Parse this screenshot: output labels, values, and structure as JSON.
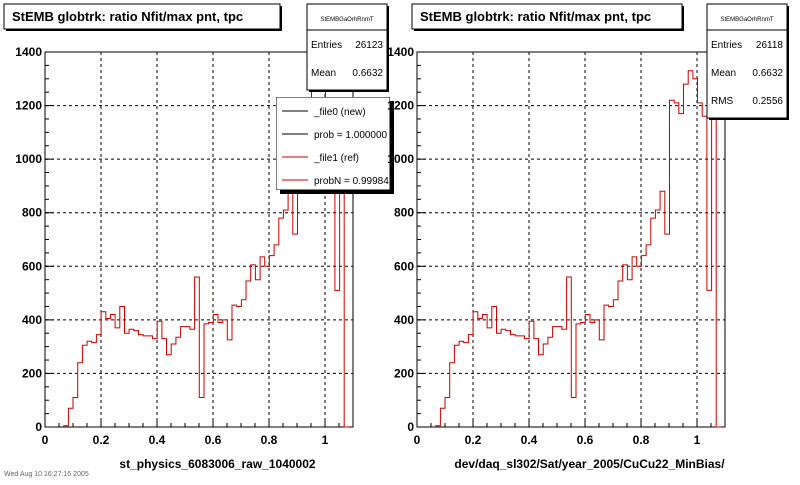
{
  "footer_text": "Wed Aug 10 16:27:16 2005",
  "chart_data": [
    {
      "type": "histogram",
      "title": "StEMB globtrk: ratio Nfit/max pnt, tpc",
      "xlabel": "st_physics_6083006_raw_1040002",
      "ylabel": "",
      "xlim": [
        0,
        1.1
      ],
      "ylim": [
        0,
        1400
      ],
      "x_ticks": [
        "0",
        "0.2",
        "0.4",
        "0.6",
        "0.8",
        "1"
      ],
      "y_ticks": [
        "0",
        "200",
        "400",
        "600",
        "800",
        "1000",
        "1200",
        "1400"
      ],
      "grid": true,
      "stats": {
        "name": "StEMBGaOrhRnmT",
        "rows": [
          {
            "label": "Entries",
            "value": "26123"
          },
          {
            "label": "Mean",
            "value": "0.6632"
          }
        ]
      },
      "legend": {
        "placement": "top-right",
        "entries": [
          {
            "label": "_file0 (new)",
            "color": "#000000"
          },
          {
            "label": "prob = 1.000000",
            "color": "#000000"
          },
          {
            "label": "_file1 (ref)",
            "color": "#cc0000"
          },
          {
            "label": "probN = 0.99984",
            "color": "#cc0000"
          }
        ]
      },
      "series": [
        {
          "color": "#cc0000",
          "bin_width": 0.0167,
          "x_start": 0.0667,
          "values": [
            5,
            70,
            110,
            240,
            305,
            320,
            315,
            345,
            430,
            405,
            420,
            370,
            450,
            350,
            365,
            360,
            345,
            340,
            340,
            330,
            395,
            330,
            270,
            310,
            335,
            375,
            375,
            365,
            560,
            110,
            385,
            390,
            420,
            390,
            400,
            325,
            455,
            450,
            475,
            545,
            605,
            550,
            635,
            600,
            640,
            680,
            780,
            810,
            880,
            720,
            1220,
            1210,
            1170,
            1280,
            1330,
            1300,
            1210,
            1160,
            510,
            1200,
            0
          ]
        }
      ]
    },
    {
      "type": "histogram",
      "title": "StEMB globtrk: ratio Nfit/max pnt, tpc",
      "xlabel": "dev/daq_sl302/Sat/year_2005/CuCu22_MinBias/",
      "ylabel": "",
      "xlim": [
        0,
        1.1
      ],
      "ylim": [
        0,
        1400
      ],
      "x_ticks": [
        "0",
        "0.2",
        "0.4",
        "0.6",
        "0.8",
        "1"
      ],
      "y_ticks": [
        "0",
        "200",
        "400",
        "600",
        "800",
        "1000",
        "1200",
        "1400"
      ],
      "grid": true,
      "stats": {
        "name": "StEMBGaOrhRnmT",
        "rows": [
          {
            "label": "Entries",
            "value": "26118"
          },
          {
            "label": "Mean",
            "value": "0.6632"
          },
          {
            "label": "RMS",
            "value": "0.2556"
          }
        ]
      },
      "legend": null,
      "series": [
        {
          "color": "#cc0000",
          "bin_width": 0.0167,
          "x_start": 0.0667,
          "values": [
            5,
            70,
            110,
            240,
            305,
            320,
            315,
            345,
            430,
            405,
            420,
            370,
            450,
            350,
            365,
            360,
            345,
            340,
            340,
            330,
            395,
            330,
            270,
            310,
            335,
            375,
            375,
            365,
            560,
            110,
            385,
            390,
            420,
            390,
            400,
            325,
            455,
            450,
            475,
            545,
            605,
            550,
            635,
            600,
            640,
            680,
            780,
            810,
            880,
            720,
            1220,
            1210,
            1170,
            1280,
            1330,
            1300,
            1210,
            1160,
            510,
            1200,
            0
          ]
        }
      ]
    }
  ]
}
